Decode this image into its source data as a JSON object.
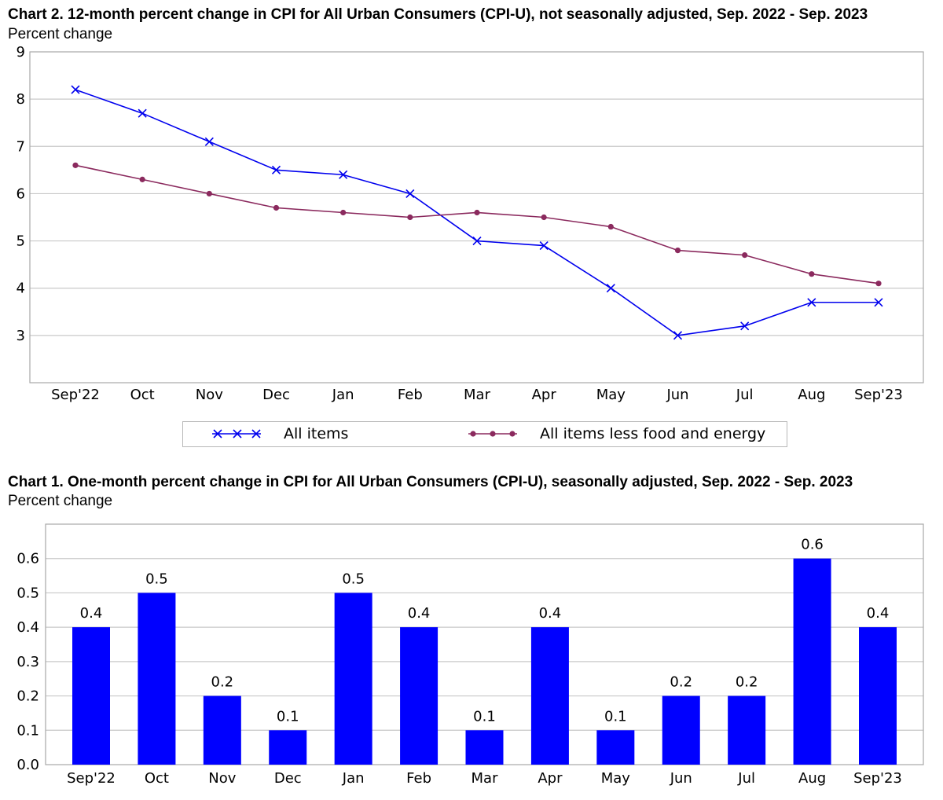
{
  "chart_data": [
    {
      "type": "line",
      "title": "Chart 2. 12-month percent change in CPI for All Urban Consumers (CPI-U), not seasonally adjusted, Sep. 2022 - Sep. 2023",
      "ylabel": "Percent change",
      "xlabel": "",
      "ylim": [
        2,
        9
      ],
      "yticks": [
        3,
        4,
        5,
        6,
        7,
        8,
        9
      ],
      "categories": [
        "Sep'22",
        "Oct",
        "Nov",
        "Dec",
        "Jan",
        "Feb",
        "Mar",
        "Apr",
        "May",
        "Jun",
        "Jul",
        "Aug",
        "Sep'23"
      ],
      "grid": true,
      "legend_position": "bottom",
      "series": [
        {
          "name": "All items",
          "color": "#0000ee",
          "marker": "x",
          "values": [
            8.2,
            7.7,
            7.1,
            6.5,
            6.4,
            6.0,
            5.0,
            4.9,
            4.0,
            3.0,
            3.2,
            3.7,
            3.7
          ]
        },
        {
          "name": "All items less food and energy",
          "color": "#8b2a5e",
          "marker": "circle",
          "values": [
            6.6,
            6.3,
            6.0,
            5.7,
            5.6,
            5.5,
            5.6,
            5.5,
            5.3,
            4.8,
            4.7,
            4.3,
            4.1
          ]
        }
      ]
    },
    {
      "type": "bar",
      "title": "Chart 1. One-month percent change in CPI for All Urban Consumers (CPI-U), seasonally adjusted, Sep. 2022 - Sep. 2023",
      "ylabel": "Percent change",
      "xlabel": "",
      "ylim": [
        0,
        0.7
      ],
      "yticks": [
        "0.0",
        "0.1",
        "0.2",
        "0.3",
        "0.4",
        "0.5",
        "0.6"
      ],
      "categories": [
        "Sep'22",
        "Oct",
        "Nov",
        "Dec",
        "Jan",
        "Feb",
        "Mar",
        "Apr",
        "May",
        "Jun",
        "Jul",
        "Aug",
        "Sep'23"
      ],
      "values": [
        0.4,
        0.5,
        0.2,
        0.1,
        0.5,
        0.4,
        0.1,
        0.4,
        0.1,
        0.2,
        0.2,
        0.6,
        0.4
      ],
      "data_labels": [
        "0.4",
        "0.5",
        "0.2",
        "0.1",
        "0.5",
        "0.4",
        "0.1",
        "0.4",
        "0.1",
        "0.2",
        "0.2",
        "0.6",
        "0.4"
      ],
      "bar_color": "#0000ff",
      "grid": true
    }
  ]
}
